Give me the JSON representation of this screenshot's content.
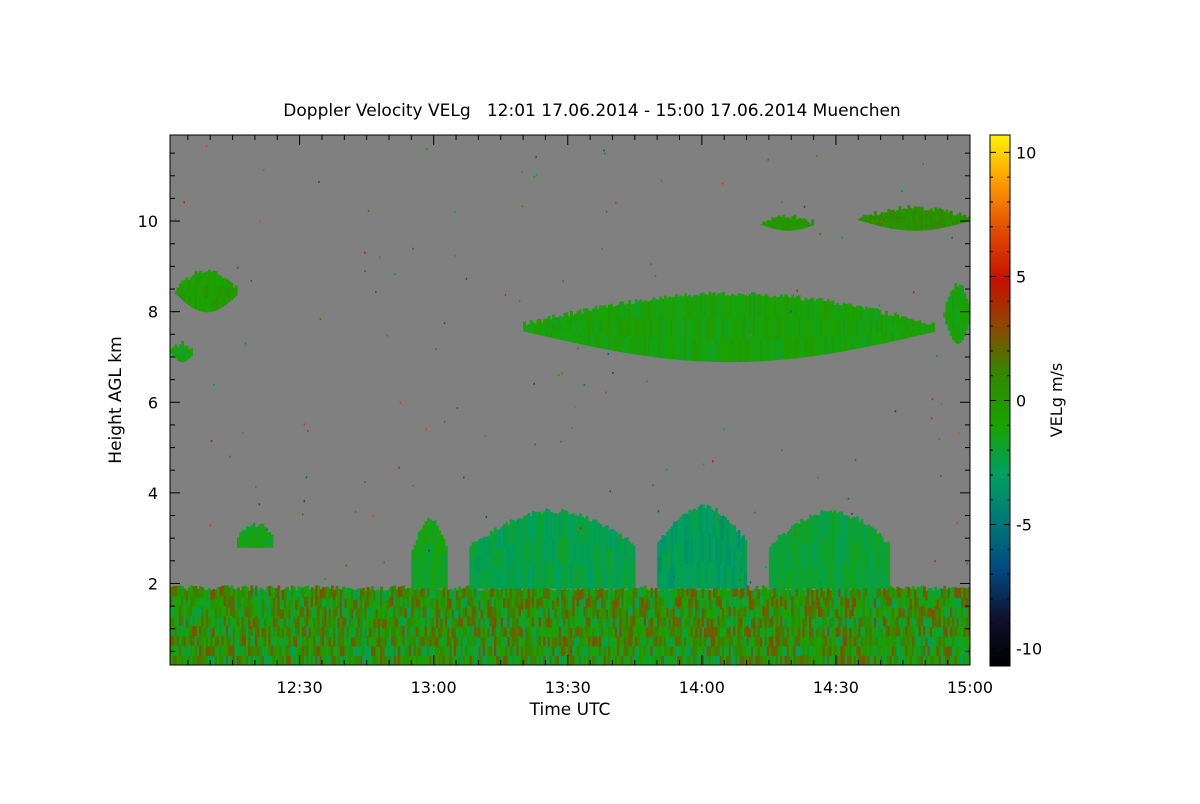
{
  "chart_data": {
    "type": "heatmap",
    "title": "Doppler Velocity VELg   12:01 17.06.2014 - 15:00 17.06.2014 Muenchen",
    "xlabel": "Time UTC",
    "ylabel": "Height AGL km",
    "xlim": [
      "12:01",
      "15:00"
    ],
    "ylim": [
      0.2,
      11.9
    ],
    "x_ticks": [
      "12:30",
      "13:00",
      "13:30",
      "14:00",
      "14:30",
      "15:00"
    ],
    "y_ticks": [
      2,
      4,
      6,
      8,
      10
    ],
    "colorbar": {
      "label": "VELg m/s",
      "range": [
        -10.7,
        10.7
      ],
      "ticks": [
        10,
        5,
        0,
        -5,
        -10
      ],
      "colors": [
        "#fff200",
        "#ff9a00",
        "#e04a00",
        "#c81000",
        "#8a4a00",
        "#2f8a00",
        "#1aa300",
        "#00a060",
        "#007878",
        "#004a80",
        "#101030",
        "#000000"
      ]
    },
    "background_color": "#808080",
    "regions": [
      {
        "kind": "boundary_layer",
        "x_range": [
          "12:01",
          "15:00"
        ],
        "y_range": [
          0.2,
          1.9
        ],
        "velocity_range": [
          -3,
          3
        ]
      },
      {
        "kind": "cloud",
        "x_range": [
          "12:55",
          "13:03"
        ],
        "y_range": [
          1.9,
          3.4
        ],
        "velocity": -1.5
      },
      {
        "kind": "cloud",
        "x_range": [
          "13:08",
          "13:45"
        ],
        "y_range": [
          1.9,
          3.6
        ],
        "velocity": -2.5
      },
      {
        "kind": "cloud",
        "x_range": [
          "13:50",
          "14:10"
        ],
        "y_range": [
          1.9,
          3.7
        ],
        "velocity": -3
      },
      {
        "kind": "cloud",
        "x_range": [
          "14:15",
          "14:42"
        ],
        "y_range": [
          1.9,
          3.6
        ],
        "velocity": -2
      },
      {
        "kind": "cloud",
        "x_range": [
          "12:16",
          "12:24"
        ],
        "y_range": [
          2.8,
          3.3
        ],
        "velocity": -1.5
      },
      {
        "kind": "cloud",
        "x_range": [
          "13:20",
          "14:52"
        ],
        "y_range": [
          6.9,
          8.4
        ],
        "velocity": -1
      },
      {
        "kind": "cloud",
        "x_range": [
          "12:02",
          "12:16"
        ],
        "y_range": [
          8.0,
          8.9
        ],
        "velocity": -0.5
      },
      {
        "kind": "cloud",
        "x_range": [
          "12:01",
          "12:06"
        ],
        "y_range": [
          6.9,
          7.3
        ],
        "velocity": -1.5
      },
      {
        "kind": "cloud",
        "x_range": [
          "14:13",
          "14:25"
        ],
        "y_range": [
          9.8,
          10.1
        ],
        "velocity": 0
      },
      {
        "kind": "cloud",
        "x_range": [
          "14:35",
          "15:00"
        ],
        "y_range": [
          9.8,
          10.3
        ],
        "velocity": 0.5
      },
      {
        "kind": "cloud",
        "x_range": [
          "14:54",
          "15:00"
        ],
        "y_range": [
          7.3,
          8.6
        ],
        "velocity": -1
      }
    ]
  }
}
